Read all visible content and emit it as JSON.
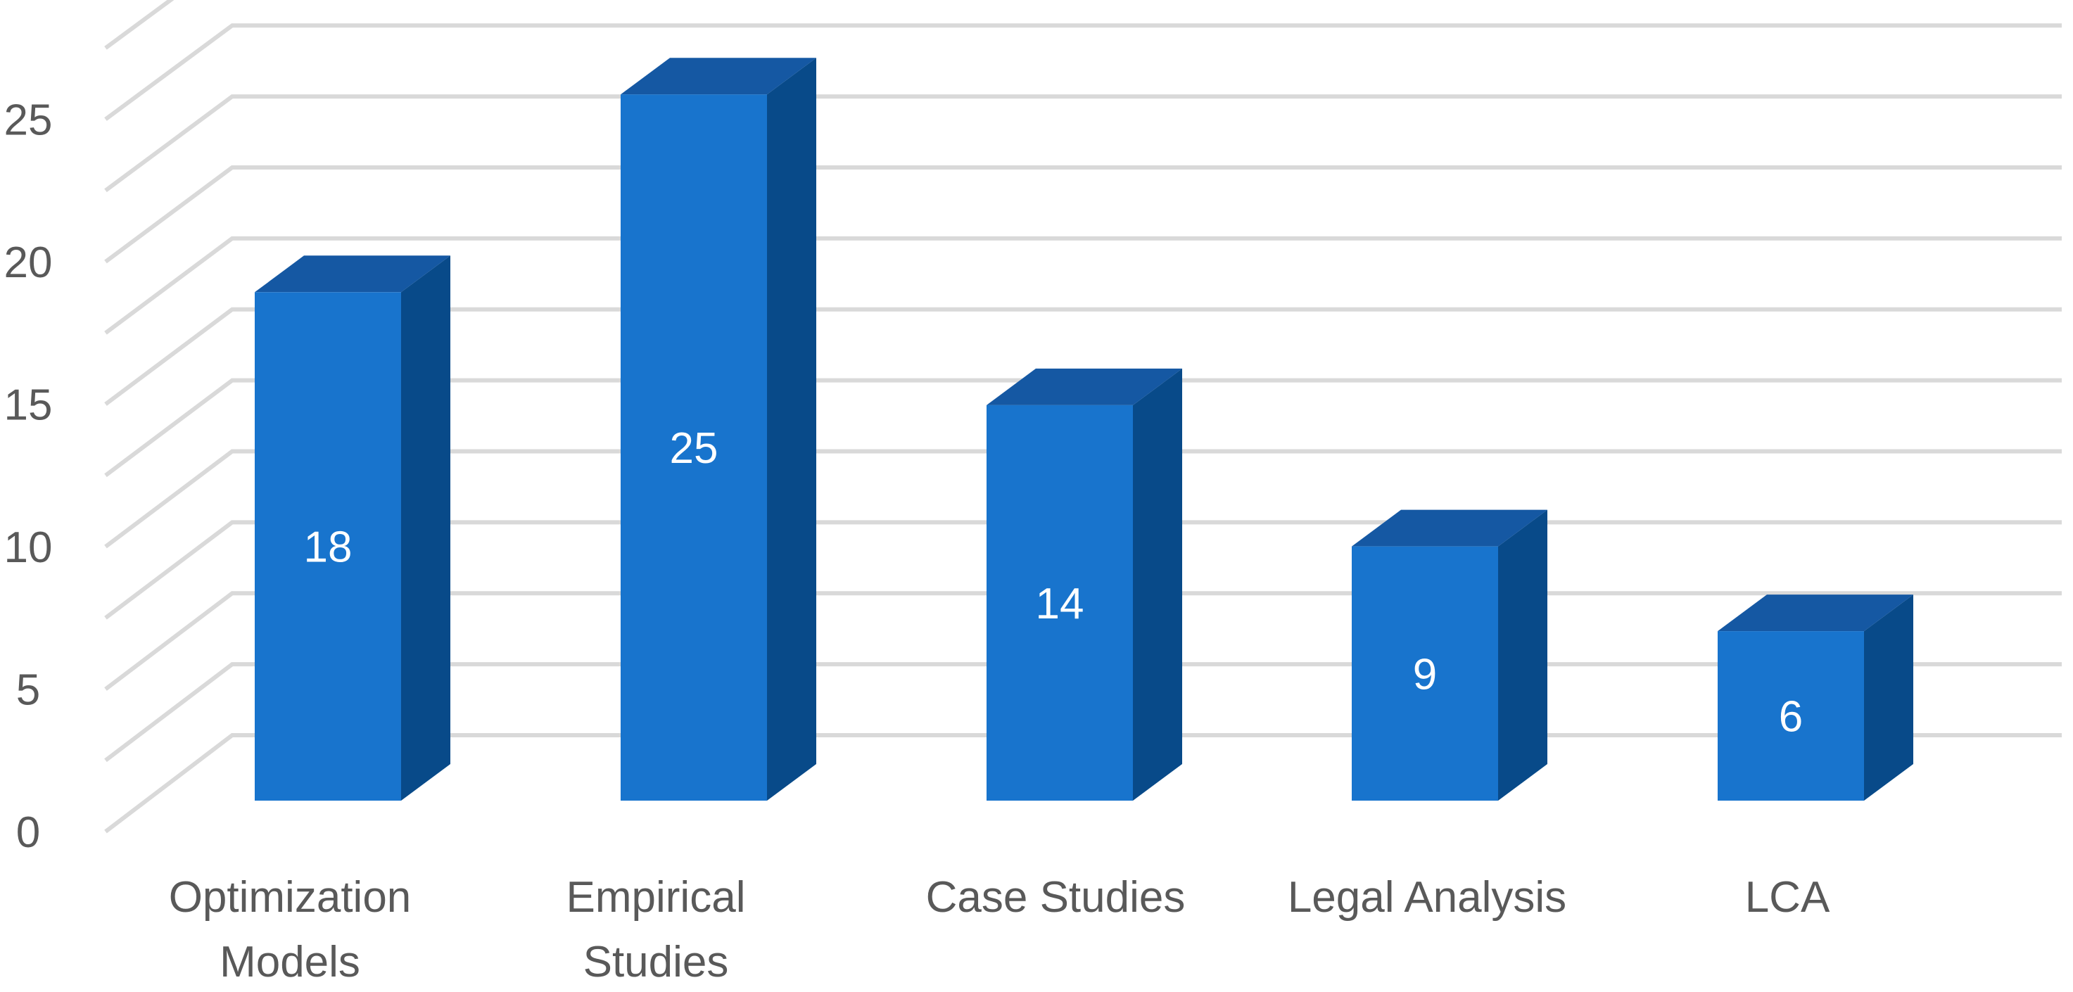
{
  "chart_data": {
    "type": "bar",
    "style": "3d-column",
    "categories": [
      [
        "Optimization",
        "Models"
      ],
      [
        "Empirical",
        "Studies"
      ],
      [
        "Case Studies"
      ],
      [
        "Legal Analysis"
      ],
      [
        "LCA"
      ]
    ],
    "values": [
      18,
      25,
      14,
      9,
      6
    ],
    "data_labels": [
      "18",
      "25",
      "14",
      "9",
      "6"
    ],
    "y_ticks": [
      "0",
      "5",
      "10",
      "15",
      "20",
      "25"
    ],
    "ylim": [
      0,
      27.5
    ],
    "grid": true,
    "legend": "none",
    "colors": {
      "bar_front": "#1874cd",
      "bar_side": "#084a89",
      "bar_top": "#1558a3",
      "gridline": "#d9d9d9",
      "axis_text": "#595959",
      "data_label": "#ffffff"
    }
  }
}
